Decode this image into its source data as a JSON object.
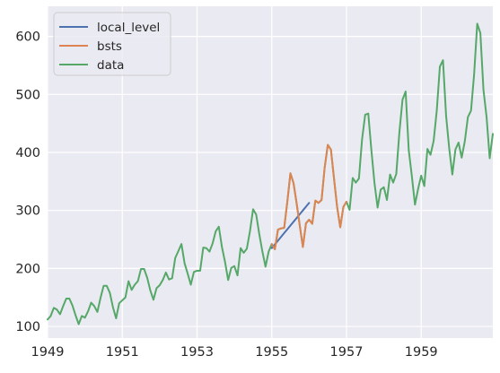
{
  "chart_data": {
    "type": "line",
    "title": "",
    "xlabel": "",
    "ylabel": "",
    "xlim": [
      1949.0,
      1960.917
    ],
    "ylim": [
      80,
      652
    ],
    "grid": true,
    "legend_position": "top-left",
    "x_ticks": [
      1949,
      1951,
      1953,
      1955,
      1957,
      1959
    ],
    "x_tick_labels": [
      "1949",
      "1951",
      "1953",
      "1955",
      "1957",
      "1959"
    ],
    "y_ticks": [
      100,
      200,
      300,
      400,
      500,
      600
    ],
    "y_tick_labels": [
      "100",
      "200",
      "300",
      "400",
      "500",
      "600"
    ],
    "colors": {
      "background": "#eaeaf2",
      "grid": "#ffffff",
      "local_level": "#4c72b0",
      "bsts": "#dd8452",
      "data": "#55a868"
    },
    "series": [
      {
        "name": "local_level",
        "color": "#4c72b0",
        "start": 1955.0,
        "step": 0.0833333,
        "values": [
          235,
          241.5,
          248,
          254.5,
          261,
          267.5,
          274,
          280.5,
          287,
          293.5,
          300,
          306.5,
          313
        ]
      },
      {
        "name": "bsts",
        "color": "#dd8452",
        "start": 1955.0,
        "step": 0.0833333,
        "values": [
          242,
          233,
          267,
          269,
          270,
          315,
          364,
          347,
          312,
          274,
          237,
          278,
          284,
          277,
          317,
          313,
          318,
          374,
          413,
          405,
          355,
          306,
          271,
          306,
          315
        ]
      },
      {
        "name": "data",
        "color": "#55a868",
        "start": 1949.0,
        "step": 0.0833333,
        "values": [
          112,
          118,
          132,
          129,
          121,
          135,
          148,
          148,
          136,
          119,
          104,
          118,
          115,
          126,
          141,
          135,
          125,
          149,
          170,
          170,
          158,
          133,
          114,
          140,
          145,
          150,
          178,
          163,
          172,
          178,
          199,
          199,
          184,
          162,
          146,
          166,
          171,
          180,
          193,
          181,
          183,
          218,
          230,
          242,
          209,
          191,
          172,
          194,
          196,
          196,
          236,
          235,
          229,
          243,
          264,
          272,
          237,
          211,
          180,
          201,
          204,
          188,
          235,
          227,
          234,
          264,
          302,
          293,
          259,
          229,
          203,
          229,
          242,
          233,
          267,
          269,
          270,
          315,
          364,
          347,
          312,
          274,
          237,
          278,
          284,
          277,
          317,
          313,
          318,
          374,
          413,
          405,
          355,
          306,
          271,
          306,
          315,
          301,
          356,
          348,
          355,
          422,
          465,
          467,
          404,
          347,
          305,
          336,
          340,
          318,
          362,
          348,
          363,
          435,
          491,
          505,
          404,
          359,
          310,
          337,
          360,
          342,
          406,
          396,
          420,
          472,
          548,
          559,
          463,
          407,
          362,
          405,
          417,
          391,
          419,
          461,
          472,
          535,
          622,
          606,
          508,
          461,
          390,
          432
        ]
      }
    ]
  }
}
